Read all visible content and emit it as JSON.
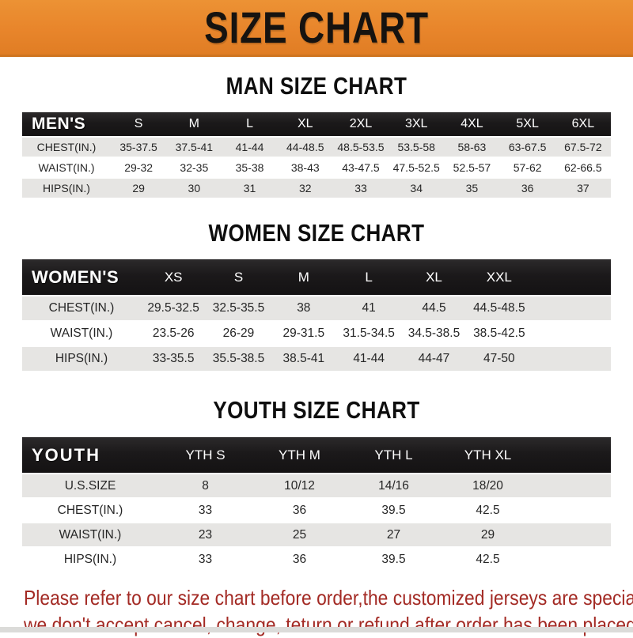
{
  "banner": {
    "title": "SIZE CHART"
  },
  "colors": {
    "banner_orange": "#E8852B",
    "banner_border": "#CF741F",
    "header_bar_black": "#1B191A",
    "row_gray": "#E6E5E3",
    "row_white": "#FFFFFF",
    "disclaimer_red": "#A32A24"
  },
  "sections": [
    {
      "heading": "MAN SIZE CHART",
      "header_label": "MEN'S",
      "columns": [
        "S",
        "M",
        "L",
        "XL",
        "2XL",
        "3XL",
        "4XL",
        "5XL",
        "6XL"
      ],
      "rows": [
        {
          "label": "CHEST(IN.)",
          "values": [
            "35-37.5",
            "37.5-41",
            "41-44",
            "44-48.5",
            "48.5-53.5",
            "53.5-58",
            "58-63",
            "63-67.5",
            "67.5-72"
          ]
        },
        {
          "label": "WAIST(IN.)",
          "values": [
            "29-32",
            "32-35",
            "35-38",
            "38-43",
            "43-47.5",
            "47.5-52.5",
            "52.5-57",
            "57-62",
            "62-66.5"
          ]
        },
        {
          "label": "HIPS(IN.)",
          "values": [
            "29",
            "30",
            "31",
            "32",
            "33",
            "34",
            "35",
            "36",
            "37"
          ]
        }
      ]
    },
    {
      "heading": "WOMEN SIZE CHART",
      "header_label": "WOMEN'S",
      "columns": [
        "XS",
        "S",
        "M",
        "L",
        "XL",
        "XXL"
      ],
      "rows": [
        {
          "label": "CHEST(IN.)",
          "values": [
            "29.5-32.5",
            "32.5-35.5",
            "38",
            "41",
            "44.5",
            "44.5-48.5"
          ]
        },
        {
          "label": "WAIST(IN.)",
          "values": [
            "23.5-26",
            "26-29",
            "29-31.5",
            "31.5-34.5",
            "34.5-38.5",
            "38.5-42.5"
          ]
        },
        {
          "label": "HIPS(IN.)",
          "values": [
            "33-35.5",
            "35.5-38.5",
            "38.5-41",
            "41-44",
            "44-47",
            "47-50"
          ]
        }
      ]
    },
    {
      "heading": "YOUTH SIZE CHART",
      "header_label": "YOUTH",
      "columns": [
        "YTH S",
        "YTH M",
        "YTH L",
        "YTH XL"
      ],
      "rows": [
        {
          "label": "U.S.SIZE",
          "values": [
            "8",
            "10/12",
            "14/16",
            "18/20"
          ]
        },
        {
          "label": "CHEST(IN.)",
          "values": [
            "33",
            "36",
            "39.5",
            "42.5"
          ]
        },
        {
          "label": "WAIST(IN.)",
          "values": [
            "23",
            "25",
            "27",
            "29"
          ]
        },
        {
          "label": "HIPS(IN.)",
          "values": [
            "33",
            "36",
            "39.5",
            "42.5"
          ]
        }
      ]
    }
  ],
  "footer": {
    "line1": "Please refer to our size chart before order,the customized jerseys are special products,",
    "line2": "we don't accept cancel, change, teturn or refund after order has been placed!"
  }
}
